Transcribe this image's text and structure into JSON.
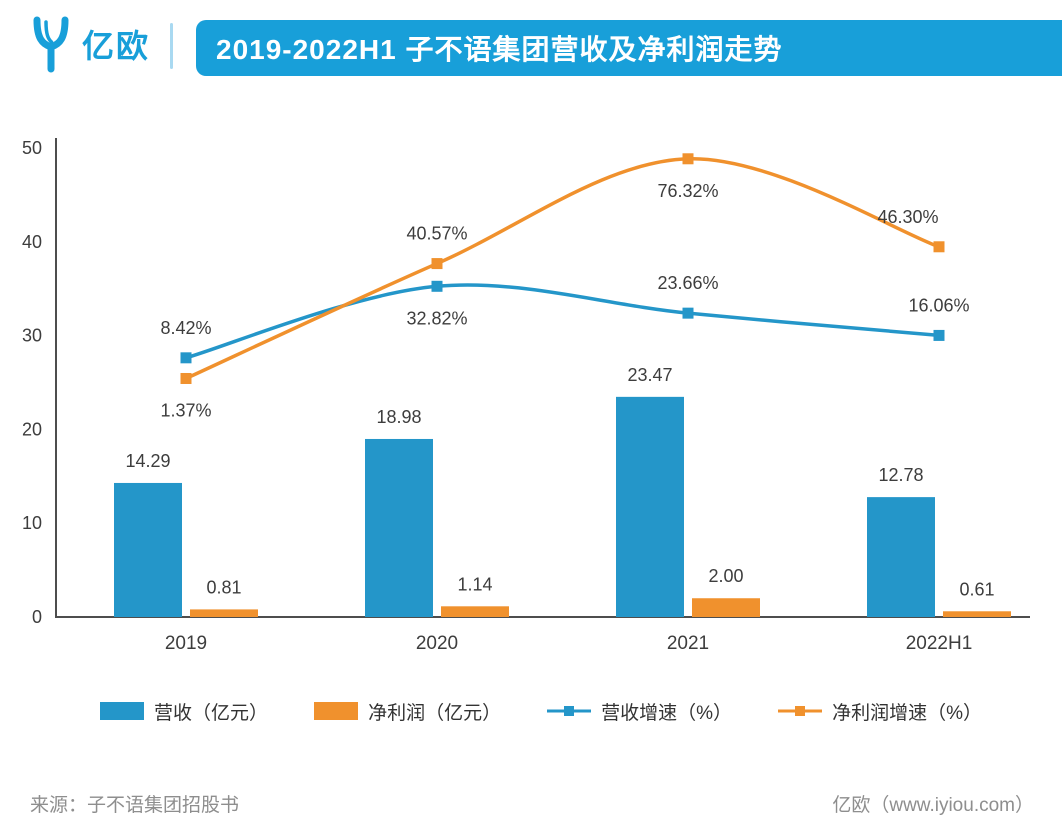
{
  "colors": {
    "brand_blue": "#189fd9",
    "series_blue": "#2496c9",
    "series_orange": "#f0912d",
    "text_dark": "#3d3d3d",
    "text_gray": "#8e8e8e",
    "axis_gray": "#4d4d4d",
    "title_text": "#ffffff"
  },
  "header": {
    "logo_text": "亿欧",
    "logo_icon": "iyiou-logo-icon",
    "title": "2019-2022H1 子不语集团营收及净利润走势"
  },
  "chart_data": {
    "type": "combo",
    "categories": [
      "2019",
      "2020",
      "2021",
      "2022H1"
    ],
    "ylim": [
      0,
      50
    ],
    "yticks": [
      0,
      10,
      20,
      30,
      40,
      50
    ],
    "secondary_ylim": [
      -80,
      80
    ],
    "grid": false,
    "legend_position": "bottom",
    "series": [
      {
        "name": "营收（亿元）",
        "type": "bar",
        "axis": "primary",
        "color": "#2496c9",
        "values": [
          14.29,
          18.98,
          23.47,
          12.78
        ],
        "labels": [
          "14.29",
          "18.98",
          "23.47",
          "12.78"
        ]
      },
      {
        "name": "净利润（亿元）",
        "type": "bar",
        "axis": "primary",
        "color": "#f0912d",
        "values": [
          0.81,
          1.14,
          2.0,
          0.61
        ],
        "labels": [
          "0.81",
          "1.14",
          "2.00",
          "0.61"
        ]
      },
      {
        "name": "营收增速（%）",
        "type": "line",
        "axis": "secondary",
        "color": "#2496c9",
        "values": [
          8.42,
          32.82,
          23.66,
          16.06
        ],
        "labels": [
          "8.42%",
          "32.82%",
          "23.66%",
          "16.06%"
        ],
        "label_positions": [
          "above",
          "below",
          "above",
          "above"
        ],
        "label_dx": [
          0,
          0,
          0,
          0
        ]
      },
      {
        "name": "净利润增速（%）",
        "type": "line",
        "axis": "secondary",
        "color": "#f0912d",
        "values": [
          1.37,
          40.57,
          76.32,
          46.3
        ],
        "labels": [
          "1.37%",
          "40.57%",
          "76.32%",
          "46.30%"
        ],
        "label_positions": [
          "below",
          "above",
          "below",
          "above"
        ],
        "label_dx": [
          0,
          0,
          0,
          -31
        ]
      }
    ]
  },
  "footer": {
    "source": "来源：子不语集团招股书",
    "credit": "亿欧（www.iyiou.com）"
  }
}
